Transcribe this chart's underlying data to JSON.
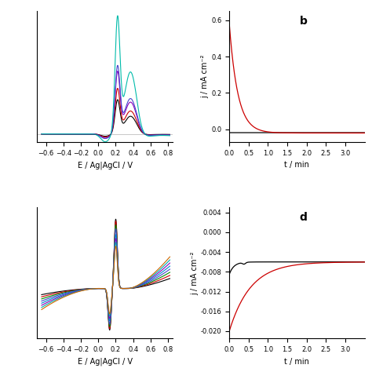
{
  "panel_a": {
    "xlabel": "E / Ag|AgCl / V",
    "xlim": [
      -0.7,
      0.85
    ],
    "ylim": [
      -0.045,
      0.68
    ],
    "xticks": [
      -0.6,
      -0.4,
      -0.2,
      0.0,
      0.2,
      0.4,
      0.6,
      0.8
    ],
    "curves": [
      {
        "color": "#000000",
        "peak1": 0.18,
        "peak2": 0.1
      },
      {
        "color": "#cc0000",
        "peak1": 0.24,
        "peak2": 0.13
      },
      {
        "color": "#8800bb",
        "peak1": 0.33,
        "peak2": 0.18
      },
      {
        "color": "#4444cc",
        "peak1": 0.36,
        "peak2": 0.2
      },
      {
        "color": "#00bbaa",
        "peak1": 0.62,
        "peak2": 0.35
      }
    ]
  },
  "panel_b": {
    "label": "b",
    "xlabel": "t / min",
    "ylabel": "j / mA cm⁻²",
    "xlim": [
      0,
      3.5
    ],
    "ylim": [
      -0.07,
      0.65
    ],
    "xticks": [
      0.0,
      0.5,
      1.0,
      1.5,
      2.0,
      2.5,
      3.0
    ],
    "yticks": [
      0.0,
      0.2,
      0.4,
      0.6
    ]
  },
  "panel_c": {
    "xlabel": "E / Ag|AgCl / V",
    "xlim": [
      -0.7,
      0.85
    ],
    "ylim": [
      -0.13,
      0.21
    ],
    "xticks": [
      -0.6,
      -0.4,
      -0.2,
      0.0,
      0.2,
      0.4,
      0.6,
      0.8
    ],
    "colors": [
      "#000000",
      "#cc0000",
      "#008800",
      "#4444cc",
      "#0088cc",
      "#8800bb",
      "#00aaaa",
      "#cc6600"
    ],
    "peak_heights": [
      0.18,
      0.175,
      0.165,
      0.155,
      0.14,
      0.13,
      0.12,
      0.11
    ]
  },
  "panel_d": {
    "label": "d",
    "xlabel": "t / min",
    "ylabel": "j / mA cm⁻²",
    "xlim": [
      0,
      3.5
    ],
    "ylim": [
      -0.0215,
      0.005
    ],
    "xticks": [
      0.0,
      0.5,
      1.0,
      1.5,
      2.0,
      2.5,
      3.0
    ],
    "yticks": [
      0.004,
      0.0,
      -0.004,
      -0.008,
      -0.012,
      -0.016,
      -0.02
    ]
  }
}
